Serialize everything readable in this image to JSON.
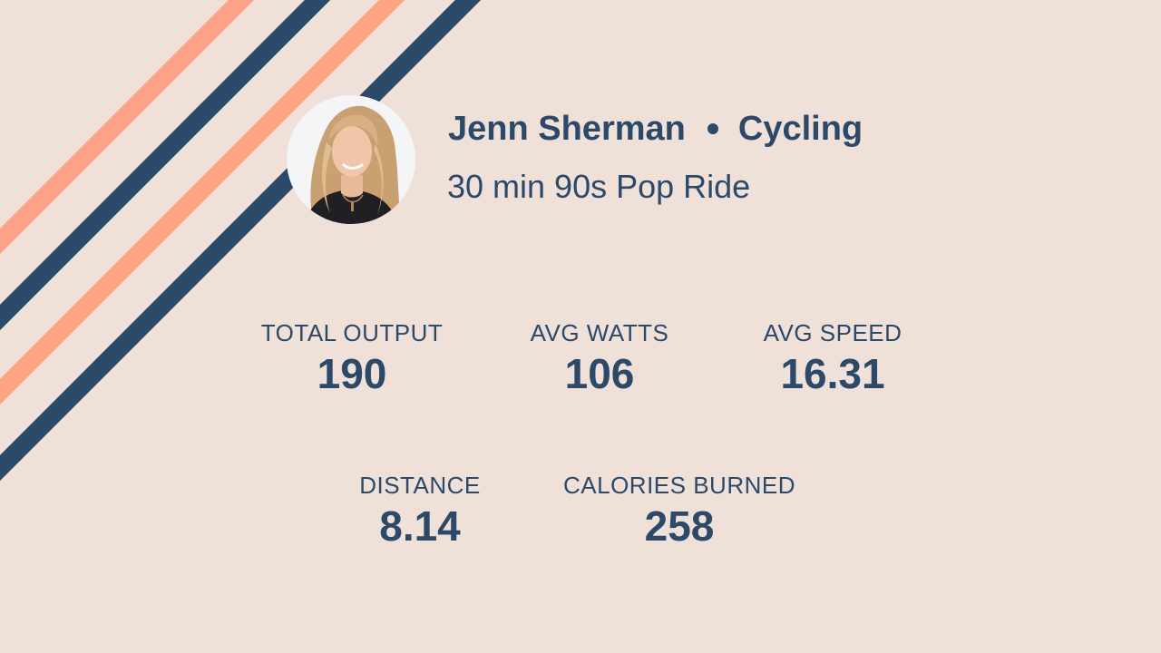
{
  "colors": {
    "background": "#efe1d8",
    "text": "#2b4a6a",
    "stripe_navy": "#2b4a6a",
    "stripe_salmon": "#ffa384"
  },
  "header": {
    "instructor": "Jenn Sherman",
    "separator_icon": "bullet-dot-icon",
    "discipline": "Cycling",
    "class_title": "30 min 90s Pop Ride"
  },
  "stats": {
    "total_output": {
      "label": "TOTAL OUTPUT",
      "value": "190"
    },
    "avg_watts": {
      "label": "AVG WATTS",
      "value": "106"
    },
    "avg_speed": {
      "label": "AVG SPEED",
      "value": "16.31"
    },
    "distance": {
      "label": "DISTANCE",
      "value": "8.14"
    },
    "calories": {
      "label": "CALORIES BURNED",
      "value": "258"
    }
  }
}
